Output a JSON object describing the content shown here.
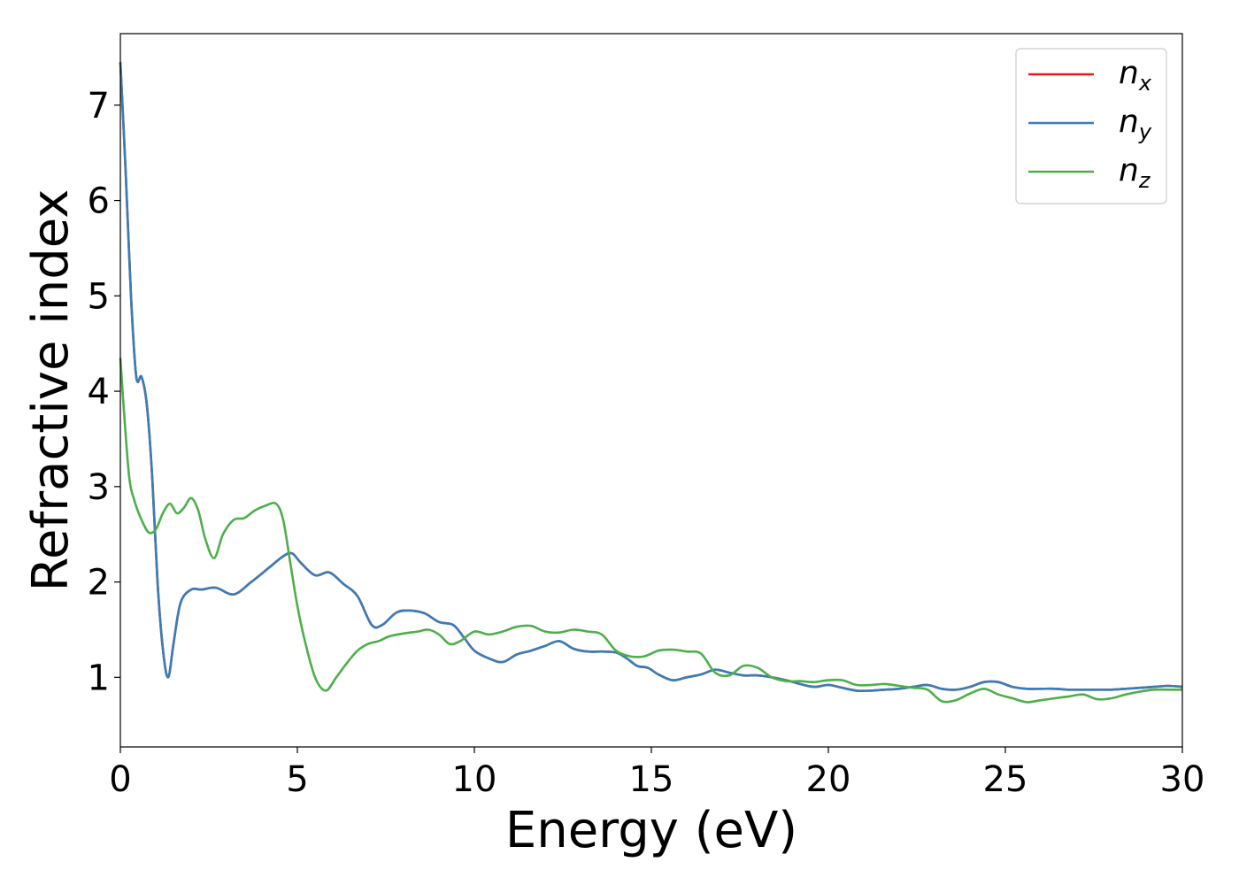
{
  "chart_data": {
    "type": "line",
    "title": "",
    "xlabel": "Energy (eV)",
    "ylabel": "Refractive index",
    "xlim": [
      0,
      30
    ],
    "ylim": [
      0.27,
      7.75
    ],
    "xticks": [
      0,
      5,
      10,
      15,
      20,
      25,
      30
    ],
    "yticks": [
      1,
      2,
      3,
      4,
      5,
      6,
      7
    ],
    "grid": false,
    "legend_position": "top-right",
    "series": [
      {
        "name": "n",
        "subscript": "x",
        "color": "#e41a1c",
        "x": [
          0,
          0.15,
          0.3,
          0.45,
          0.6,
          0.75,
          0.9,
          1.05,
          1.2,
          1.35,
          1.5,
          1.7,
          2.0,
          2.3,
          2.7,
          3.2,
          3.7,
          4.2,
          4.6,
          4.85,
          5.1,
          5.5,
          5.9,
          6.3,
          6.7,
          7.1,
          7.4,
          7.8,
          8.2,
          8.6,
          9.0,
          9.4,
          9.7,
          10.0,
          10.4,
          10.8,
          11.2,
          11.6,
          12.0,
          12.4,
          12.8,
          13.2,
          13.6,
          14.0,
          14.3,
          14.6,
          14.9,
          15.2,
          15.6,
          16.0,
          16.4,
          16.8,
          17.2,
          17.6,
          18.0,
          18.4,
          18.8,
          19.2,
          19.6,
          20.0,
          20.4,
          20.8,
          21.2,
          21.6,
          22.0,
          22.4,
          22.8,
          23.2,
          23.6,
          24.0,
          24.4,
          24.8,
          25.2,
          25.6,
          26.0,
          26.4,
          26.8,
          27.2,
          27.6,
          28.0,
          28.4,
          28.8,
          29.2,
          29.6,
          30.0
        ],
        "y": [
          7.45,
          6.3,
          5.0,
          4.15,
          4.15,
          3.85,
          3.1,
          2.0,
          1.3,
          1.0,
          1.35,
          1.78,
          1.92,
          1.92,
          1.94,
          1.87,
          2.0,
          2.15,
          2.27,
          2.3,
          2.2,
          2.07,
          2.1,
          1.98,
          1.85,
          1.55,
          1.55,
          1.68,
          1.7,
          1.67,
          1.58,
          1.55,
          1.42,
          1.28,
          1.2,
          1.16,
          1.24,
          1.28,
          1.33,
          1.38,
          1.3,
          1.27,
          1.27,
          1.26,
          1.2,
          1.12,
          1.1,
          1.03,
          0.97,
          1.0,
          1.03,
          1.08,
          1.05,
          1.02,
          1.02,
          1.0,
          0.97,
          0.93,
          0.9,
          0.92,
          0.89,
          0.86,
          0.86,
          0.87,
          0.88,
          0.9,
          0.92,
          0.88,
          0.87,
          0.9,
          0.95,
          0.95,
          0.9,
          0.88,
          0.88,
          0.88,
          0.87,
          0.87,
          0.87,
          0.87,
          0.88,
          0.89,
          0.9,
          0.91,
          0.9
        ]
      },
      {
        "name": "n",
        "subscript": "y",
        "color": "#377eb8",
        "x": [
          0,
          0.15,
          0.3,
          0.45,
          0.6,
          0.75,
          0.9,
          1.05,
          1.2,
          1.35,
          1.5,
          1.7,
          2.0,
          2.3,
          2.7,
          3.2,
          3.7,
          4.2,
          4.6,
          4.85,
          5.1,
          5.5,
          5.9,
          6.3,
          6.7,
          7.1,
          7.4,
          7.8,
          8.2,
          8.6,
          9.0,
          9.4,
          9.7,
          10.0,
          10.4,
          10.8,
          11.2,
          11.6,
          12.0,
          12.4,
          12.8,
          13.2,
          13.6,
          14.0,
          14.3,
          14.6,
          14.9,
          15.2,
          15.6,
          16.0,
          16.4,
          16.8,
          17.2,
          17.6,
          18.0,
          18.4,
          18.8,
          19.2,
          19.6,
          20.0,
          20.4,
          20.8,
          21.2,
          21.6,
          22.0,
          22.4,
          22.8,
          23.2,
          23.6,
          24.0,
          24.4,
          24.8,
          25.2,
          25.6,
          26.0,
          26.4,
          26.8,
          27.2,
          27.6,
          28.0,
          28.4,
          28.8,
          29.2,
          29.6,
          30.0
        ],
        "y": [
          7.45,
          6.3,
          5.0,
          4.15,
          4.15,
          3.85,
          3.1,
          2.0,
          1.3,
          1.0,
          1.35,
          1.78,
          1.92,
          1.92,
          1.94,
          1.87,
          2.0,
          2.15,
          2.27,
          2.3,
          2.2,
          2.07,
          2.1,
          1.98,
          1.85,
          1.55,
          1.55,
          1.68,
          1.7,
          1.67,
          1.58,
          1.55,
          1.42,
          1.28,
          1.2,
          1.16,
          1.24,
          1.28,
          1.33,
          1.38,
          1.3,
          1.27,
          1.27,
          1.26,
          1.2,
          1.12,
          1.1,
          1.03,
          0.97,
          1.0,
          1.03,
          1.08,
          1.05,
          1.02,
          1.02,
          1.0,
          0.97,
          0.93,
          0.9,
          0.92,
          0.89,
          0.86,
          0.86,
          0.87,
          0.88,
          0.9,
          0.92,
          0.88,
          0.87,
          0.9,
          0.95,
          0.95,
          0.9,
          0.88,
          0.88,
          0.88,
          0.87,
          0.87,
          0.87,
          0.87,
          0.88,
          0.89,
          0.9,
          0.91,
          0.9
        ]
      },
      {
        "name": "n",
        "subscript": "z",
        "color": "#4daf4a",
        "x": [
          0,
          0.1,
          0.25,
          0.4,
          0.6,
          0.8,
          1.0,
          1.2,
          1.4,
          1.6,
          1.8,
          2.0,
          2.2,
          2.4,
          2.65,
          2.9,
          3.2,
          3.5,
          3.8,
          4.1,
          4.4,
          4.6,
          4.8,
          5.0,
          5.2,
          5.5,
          5.8,
          6.1,
          6.4,
          6.7,
          7.0,
          7.3,
          7.6,
          8.0,
          8.4,
          8.7,
          9.0,
          9.3,
          9.6,
          10.0,
          10.4,
          10.8,
          11.2,
          11.6,
          12.0,
          12.4,
          12.8,
          13.2,
          13.6,
          14.0,
          14.4,
          14.8,
          15.2,
          15.6,
          16.0,
          16.4,
          16.8,
          17.2,
          17.6,
          18.0,
          18.4,
          18.8,
          19.2,
          19.6,
          20.0,
          20.4,
          20.8,
          21.2,
          21.6,
          22.0,
          22.4,
          22.8,
          23.2,
          23.6,
          24.0,
          24.4,
          24.8,
          25.2,
          25.6,
          26.0,
          26.4,
          26.8,
          27.2,
          27.6,
          28.0,
          28.4,
          28.8,
          29.2,
          29.6,
          30.0
        ],
        "y": [
          4.35,
          3.8,
          3.1,
          2.85,
          2.65,
          2.52,
          2.55,
          2.72,
          2.82,
          2.72,
          2.78,
          2.88,
          2.75,
          2.45,
          2.25,
          2.5,
          2.65,
          2.67,
          2.75,
          2.8,
          2.82,
          2.65,
          2.2,
          1.75,
          1.4,
          1.0,
          0.86,
          1.0,
          1.15,
          1.28,
          1.35,
          1.38,
          1.43,
          1.46,
          1.48,
          1.5,
          1.45,
          1.35,
          1.38,
          1.48,
          1.45,
          1.48,
          1.53,
          1.54,
          1.48,
          1.47,
          1.5,
          1.48,
          1.45,
          1.28,
          1.22,
          1.22,
          1.28,
          1.29,
          1.27,
          1.25,
          1.05,
          1.02,
          1.12,
          1.1,
          1.0,
          0.96,
          0.96,
          0.95,
          0.97,
          0.97,
          0.92,
          0.92,
          0.93,
          0.91,
          0.89,
          0.87,
          0.75,
          0.76,
          0.83,
          0.88,
          0.82,
          0.78,
          0.74,
          0.76,
          0.78,
          0.8,
          0.82,
          0.77,
          0.78,
          0.82,
          0.85,
          0.87,
          0.87,
          0.87
        ]
      }
    ]
  }
}
